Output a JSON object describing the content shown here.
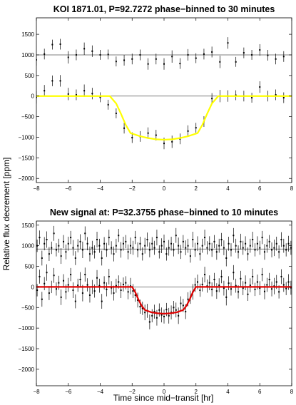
{
  "figure": {
    "ylabel": "Relative flux decrement [ppm]",
    "xlabel": "Time since mid−transit [hr]"
  },
  "chart_data": [
    {
      "type": "scatter",
      "title": "KOI 1871.01, P=92.7272 phase−binned to 30 minutes",
      "xlim": [
        -8,
        8
      ],
      "ylim": [
        -2100,
        1900
      ],
      "xticks": [
        -8,
        -6,
        -4,
        -2,
        0,
        2,
        4,
        6,
        8
      ],
      "yticks": [
        1500,
        1000,
        500,
        0,
        -500,
        -1000,
        -1500,
        -2000
      ],
      "reference_lines": [
        1000,
        0
      ],
      "grid": false,
      "model": {
        "color": "#ffff00",
        "depth": -1060,
        "t_outer": 3.4,
        "t_inner": 2.1,
        "x": [
          -8,
          -3.4,
          -3,
          -2.7,
          -2.4,
          -2.1,
          -1.5,
          -1,
          -0.5,
          0,
          0.5,
          1,
          1.5,
          2.1,
          2.4,
          2.7,
          3,
          3.4,
          8
        ],
        "y": [
          0,
          0,
          -180,
          -430,
          -700,
          -900,
          -975,
          -1020,
          -1050,
          -1060,
          -1050,
          -1020,
          -975,
          -900,
          -700,
          -430,
          -180,
          0,
          0
        ]
      },
      "series": [
        {
          "x": [
            -8.0,
            -7.5,
            -7.0,
            -6.5,
            -6.0,
            -5.5,
            -5.0,
            -4.5,
            -4.0,
            -3.5,
            -3.0,
            -2.5,
            -2.0,
            -1.5,
            -1.0,
            -0.5,
            0.0,
            0.5,
            1.0,
            1.5,
            2.0,
            2.5,
            3.0,
            3.5,
            4.0,
            4.5,
            5.0,
            5.5,
            6.0,
            6.5,
            7.0,
            7.5
          ],
          "y": [
            880,
            1020,
            1250,
            1260,
            940,
            1000,
            1150,
            1090,
            1000,
            1010,
            840,
            870,
            900,
            1000,
            780,
            900,
            780,
            960,
            790,
            1000,
            920,
            1020,
            1070,
            830,
            1290,
            830,
            1050,
            1000,
            1120,
            990,
            900,
            960
          ],
          "err": [
            140,
            130,
            120,
            130,
            150,
            130,
            150,
            140,
            120,
            120,
            120,
            130,
            130,
            130,
            140,
            130,
            140,
            150,
            130,
            140,
            120,
            130,
            130,
            150,
            140,
            120,
            130,
            120,
            140,
            130,
            130,
            130
          ]
        },
        {
          "x": [
            -8.0,
            -7.5,
            -7.0,
            -6.5,
            -6.0,
            -5.5,
            -5.0,
            -4.5,
            -4.0,
            -3.5,
            -3.0,
            -2.5,
            -2.0,
            -1.5,
            -1.0,
            -0.5,
            0.0,
            0.5,
            1.0,
            1.5,
            2.0,
            2.5,
            3.0,
            3.5,
            4.0,
            4.5,
            5.0,
            5.5,
            6.0,
            6.5,
            7.0,
            7.5
          ],
          "y": [
            -30,
            130,
            370,
            370,
            50,
            30,
            130,
            60,
            -30,
            -210,
            -420,
            -780,
            -1010,
            -980,
            -900,
            -950,
            -1150,
            -1110,
            -1040,
            -850,
            -770,
            -620,
            -60,
            0,
            0,
            20,
            0,
            -40,
            220,
            0,
            30,
            -40
          ],
          "err": [
            150,
            140,
            130,
            140,
            150,
            130,
            150,
            140,
            120,
            120,
            120,
            130,
            130,
            130,
            140,
            130,
            140,
            150,
            130,
            140,
            120,
            130,
            130,
            150,
            140,
            120,
            130,
            120,
            140,
            130,
            130,
            130
          ]
        }
      ]
    },
    {
      "type": "scatter",
      "title": "New signal at: P=32.3755 phase−binned to 10 minutes",
      "xlim": [
        -8,
        8
      ],
      "ylim": [
        -2400,
        1600
      ],
      "xticks": [
        -8,
        -6,
        -4,
        -2,
        0,
        2,
        4,
        6,
        8
      ],
      "yticks": [
        1500,
        1000,
        500,
        0,
        -500,
        -1000,
        -1500,
        -2000
      ],
      "reference_lines": [
        920,
        0
      ],
      "grid": false,
      "model": {
        "color": "#e00000",
        "depth": -650,
        "t_outer": 2.0,
        "t_inner": 1.3,
        "x": [
          -8,
          -2,
          -1.8,
          -1.6,
          -1.4,
          -1.2,
          -0.8,
          -0.4,
          0,
          0.4,
          0.8,
          1.2,
          1.4,
          1.6,
          1.8,
          2,
          8
        ],
        "y": [
          0,
          0,
          -130,
          -310,
          -460,
          -560,
          -615,
          -640,
          -650,
          -640,
          -615,
          -560,
          -460,
          -310,
          -130,
          0,
          0
        ]
      },
      "series": [
        {
          "x": [
            -7.95,
            -7.8,
            -7.65,
            -7.5,
            -7.35,
            -7.2,
            -7.05,
            -6.9,
            -6.75,
            -6.6,
            -6.45,
            -6.3,
            -6.15,
            -6.0,
            -5.85,
            -5.7,
            -5.55,
            -5.4,
            -5.25,
            -5.1,
            -4.95,
            -4.8,
            -4.65,
            -4.5,
            -4.35,
            -4.2,
            -4.05,
            -3.9,
            -3.75,
            -3.6,
            -3.45,
            -3.3,
            -3.15,
            -3.0,
            -2.85,
            -2.7,
            -2.55,
            -2.4,
            -2.25,
            -2.1,
            -1.95,
            -1.8,
            -1.65,
            -1.5,
            -1.35,
            -1.2,
            -1.05,
            -0.9,
            -0.75,
            -0.6,
            -0.45,
            -0.3,
            -0.15,
            0.0,
            0.15,
            0.3,
            0.45,
            0.6,
            0.75,
            0.9,
            1.05,
            1.2,
            1.35,
            1.5,
            1.65,
            1.8,
            1.95,
            2.1,
            2.25,
            2.4,
            2.55,
            2.7,
            2.85,
            3.0,
            3.15,
            3.3,
            3.45,
            3.6,
            3.75,
            3.9,
            4.05,
            4.2,
            4.35,
            4.5,
            4.65,
            4.8,
            4.95,
            5.1,
            5.25,
            5.4,
            5.55,
            5.7,
            5.85,
            6.0,
            6.15,
            6.3,
            6.45,
            6.6,
            6.75,
            6.9,
            7.05,
            7.2,
            7.35,
            7.5,
            7.65,
            7.8,
            7.95
          ],
          "y": [
            1000,
            1200,
            700,
            1050,
            1150,
            800,
            950,
            1300,
            900,
            1000,
            750,
            1100,
            850,
            1050,
            1200,
            950,
            700,
            1000,
            1100,
            900,
            1300,
            1050,
            800,
            950,
            850,
            1150,
            1000,
            700,
            1050,
            900,
            1200,
            950,
            800,
            1000,
            1250,
            900,
            1050,
            1100,
            850,
            1000,
            950,
            1200,
            900,
            1050,
            800,
            1000,
            1150,
            900,
            1050,
            950,
            1200,
            850,
            1000,
            1100,
            800,
            950,
            1050,
            900,
            1250,
            1000,
            850,
            1100,
            950,
            1000,
            750,
            1150,
            900,
            1050,
            800,
            1000,
            1200,
            950,
            1050,
            900,
            1100,
            850,
            1000,
            1150,
            950,
            700,
            1050,
            900,
            1250,
            1000,
            850,
            1100,
            950,
            1050,
            800,
            1000,
            1150,
            900,
            1050,
            950,
            1200,
            850,
            1000,
            1100,
            900,
            950,
            1050,
            850,
            1150,
            1000,
            900,
            1050,
            950
          ],
          "err": [
            150,
            170,
            180,
            160,
            200,
            170,
            150,
            180,
            160,
            170,
            190,
            160,
            180,
            170,
            160,
            190,
            170,
            160,
            180,
            200,
            170,
            160,
            180,
            170,
            160,
            190,
            170,
            180,
            160,
            170,
            190,
            160,
            180,
            170,
            160,
            190,
            170,
            160,
            180,
            200,
            170,
            160,
            180,
            170,
            160,
            190,
            170,
            180,
            160,
            170,
            190,
            160,
            180,
            170,
            160,
            190,
            170,
            160,
            180,
            200,
            170,
            160,
            180,
            170,
            160,
            190,
            170,
            180,
            160,
            170,
            190,
            160,
            180,
            170,
            160,
            190,
            170,
            160,
            180,
            200,
            170,
            160,
            180,
            170,
            160,
            190,
            170,
            180,
            160,
            170,
            190,
            160,
            180,
            170,
            160,
            190,
            170,
            160,
            180,
            200,
            170,
            160,
            180,
            170,
            160,
            190,
            170
          ]
        },
        {
          "x": [
            -7.95,
            -7.8,
            -7.65,
            -7.5,
            -7.35,
            -7.2,
            -7.05,
            -6.9,
            -6.75,
            -6.6,
            -6.45,
            -6.3,
            -6.15,
            -6.0,
            -5.85,
            -5.7,
            -5.55,
            -5.4,
            -5.25,
            -5.1,
            -4.95,
            -4.8,
            -4.65,
            -4.5,
            -4.35,
            -4.2,
            -4.05,
            -3.9,
            -3.75,
            -3.6,
            -3.45,
            -3.3,
            -3.15,
            -3.0,
            -2.85,
            -2.7,
            -2.55,
            -2.4,
            -2.25,
            -2.1,
            -1.95,
            -1.8,
            -1.65,
            -1.5,
            -1.35,
            -1.2,
            -1.05,
            -0.9,
            -0.75,
            -0.6,
            -0.45,
            -0.3,
            -0.15,
            0.0,
            0.15,
            0.3,
            0.45,
            0.6,
            0.75,
            0.9,
            1.05,
            1.2,
            1.35,
            1.5,
            1.65,
            1.8,
            1.95,
            2.1,
            2.25,
            2.4,
            2.55,
            2.7,
            2.85,
            3.0,
            3.15,
            3.3,
            3.45,
            3.6,
            3.75,
            3.9,
            4.05,
            4.2,
            4.35,
            4.5,
            4.65,
            4.8,
            4.95,
            5.1,
            5.25,
            5.4,
            5.55,
            5.7,
            5.85,
            6.0,
            6.15,
            6.3,
            6.45,
            6.6,
            6.75,
            6.9,
            7.05,
            7.2,
            7.35,
            7.5,
            7.65,
            7.8,
            7.95
          ],
          "y": [
            -80,
            250,
            -300,
            80,
            350,
            -150,
            0,
            280,
            -50,
            100,
            -250,
            150,
            -120,
            50,
            300,
            -80,
            -350,
            40,
            180,
            -150,
            300,
            50,
            -200,
            0,
            -100,
            220,
            30,
            -350,
            100,
            -60,
            250,
            -20,
            -150,
            30,
            120,
            -80,
            60,
            100,
            -120,
            20,
            -100,
            -200,
            -320,
            -480,
            -520,
            -620,
            -580,
            -850,
            -700,
            -600,
            -750,
            -560,
            -680,
            -720,
            -550,
            -700,
            -620,
            -500,
            -560,
            -700,
            -400,
            -450,
            -600,
            -300,
            -250,
            -120,
            50,
            120,
            -80,
            60,
            300,
            20,
            100,
            -60,
            180,
            -100,
            40,
            250,
            -30,
            -250,
            90,
            -50,
            350,
            30,
            -120,
            200,
            -30,
            100,
            -180,
            40,
            250,
            -60,
            120,
            -30,
            300,
            -110,
            50,
            180,
            -50,
            20,
            120,
            -120,
            250,
            50,
            -40,
            120,
            -20
          ],
          "err": [
            150,
            170,
            180,
            160,
            200,
            170,
            150,
            180,
            160,
            170,
            190,
            160,
            180,
            170,
            160,
            190,
            170,
            160,
            180,
            200,
            170,
            160,
            180,
            170,
            160,
            190,
            170,
            180,
            160,
            170,
            190,
            160,
            180,
            170,
            160,
            190,
            170,
            160,
            180,
            200,
            170,
            160,
            180,
            170,
            160,
            190,
            170,
            180,
            160,
            170,
            190,
            160,
            180,
            170,
            160,
            190,
            170,
            160,
            180,
            200,
            170,
            160,
            180,
            170,
            160,
            190,
            170,
            180,
            160,
            170,
            190,
            160,
            180,
            170,
            160,
            190,
            170,
            160,
            180,
            200,
            170,
            160,
            180,
            170,
            160,
            190,
            170,
            180,
            160,
            170,
            190,
            160,
            180,
            170,
            160,
            190,
            170,
            160,
            180,
            200,
            170,
            160,
            180,
            170,
            160,
            190,
            170
          ]
        }
      ]
    }
  ]
}
